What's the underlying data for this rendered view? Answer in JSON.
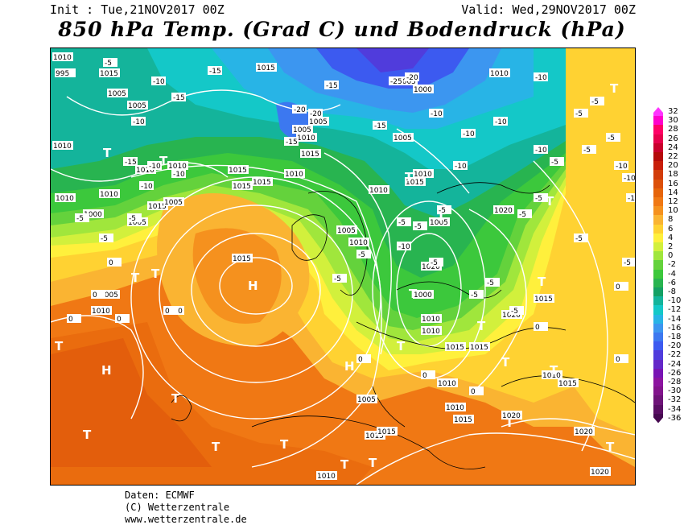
{
  "header": {
    "init": "Init : Tue,21NOV2017 00Z",
    "valid": "Valid: Wed,29NOV2017 00Z",
    "title": "850 hPa Temp. (Grad C) und Bodendruck (hPa)"
  },
  "footer": {
    "line1": "Daten: ECMWF",
    "line2": "(C) Wetterzentrale",
    "line3": "www.wetterzentrale.de"
  },
  "scale": {
    "labels": [
      "32",
      "30",
      "28",
      "26",
      "24",
      "22",
      "20",
      "18",
      "16",
      "14",
      "12",
      "10",
      "8",
      "6",
      "4",
      "2",
      "0",
      "-2",
      "-4",
      "-6",
      "-8",
      "-10",
      "-12",
      "-14",
      "-16",
      "-18",
      "-20",
      "-22",
      "-24",
      "-26",
      "-28",
      "-30",
      "-32",
      "-34",
      "-36"
    ],
    "colors": [
      "#ff33ff",
      "#ff00cc",
      "#ff0066",
      "#e6004c",
      "#c8002c",
      "#b40a0a",
      "#c81e0a",
      "#d23c0a",
      "#dc500a",
      "#e6640a",
      "#f07814",
      "#f5911e",
      "#fab432",
      "#ffd232",
      "#fff03c",
      "#d2f03c",
      "#a0e63c",
      "#64d23c",
      "#3cc83c",
      "#28b450",
      "#14a064",
      "#14b49b",
      "#14c8c8",
      "#28b4e6",
      "#3c96f0",
      "#3c78f0",
      "#3c5af0",
      "#503cdc",
      "#6428c8",
      "#7814b4",
      "#8c14a0",
      "#82148c",
      "#6e1478",
      "#5a0f64",
      "#460a50"
    ]
  },
  "map": {
    "highs": [
      "H",
      "H",
      "H"
    ],
    "lows": [
      "T",
      "T",
      "T",
      "T",
      "T",
      "T",
      "T",
      "T",
      "T",
      "T",
      "T",
      "T",
      "T",
      "T",
      "T",
      "T",
      "T",
      "T",
      "T",
      "T",
      "T",
      "T",
      "T"
    ],
    "pressure_labels": [
      "1010",
      "1015",
      "1015",
      "1010",
      "1005",
      "1010",
      "1010",
      "1015",
      "1015",
      "1010",
      "1015",
      "1010",
      "1010",
      "1005",
      "1000",
      "1005",
      "1005",
      "1010",
      "1010",
      "1015",
      "1015",
      "1010",
      "1005",
      "1010",
      "1010",
      "1015",
      "1020",
      "1005",
      "1000",
      "1005",
      "1010",
      "1020",
      "1015",
      "1010",
      "1015",
      "1020",
      "1015",
      "1005",
      "1010",
      "1010",
      "1015",
      "1020",
      "1020",
      "1015",
      "1010",
      "1015",
      "1010",
      "1015",
      "1020",
      "1015",
      "1005",
      "1000",
      "995",
      "1005",
      "1010",
      "1005",
      "1005",
      "1010"
    ],
    "temp_labels": [
      "-5",
      "-10",
      "-15",
      "-10",
      "-15",
      "-20",
      "-15",
      "-20",
      "-25",
      "-20",
      "-10",
      "-5",
      "-5",
      "-10",
      "-15",
      "-10",
      "-10",
      "-10",
      "-5",
      "-5",
      "-10",
      "-5",
      "-5",
      "-5",
      "-5",
      "0",
      "0",
      "0",
      "0",
      "0",
      "-5",
      "-5",
      "-5",
      "-5",
      "-5",
      "0",
      "0",
      "0",
      "0",
      "0",
      "-5",
      "-5",
      "-10",
      "-10",
      "-15",
      "-10",
      "-5",
      "-5",
      "-10",
      "-10",
      "-5",
      "-10",
      "0",
      "-5",
      "-5",
      "-5",
      "-10",
      "-15"
    ]
  }
}
